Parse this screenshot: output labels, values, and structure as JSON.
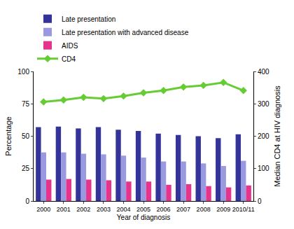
{
  "chart_data": {
    "type": "bar",
    "categories": [
      "2000",
      "2001",
      "2002",
      "2003",
      "2004",
      "2005",
      "2006",
      "2007",
      "2008",
      "2009",
      "2010/11"
    ],
    "x_label": "Year of diagnosis",
    "y_label": "Percentage",
    "y2_label": "Median CD4 at HIV diagnosis",
    "ylim": [
      0,
      100
    ],
    "yticks": [
      0,
      25,
      50,
      75,
      100
    ],
    "y2lim": [
      0,
      400
    ],
    "y2ticks": [
      0,
      100,
      200,
      300,
      400
    ],
    "grid": false,
    "legend": "top-left",
    "series": [
      {
        "name": "Late presentation",
        "type": "bar",
        "color": "#333399",
        "values": [
          57,
          57.5,
          56,
          57,
          55,
          54,
          52,
          51,
          50,
          48.5,
          51.5
        ]
      },
      {
        "name": "Late presentation with advanced disease",
        "type": "bar",
        "color": "#9999e0",
        "values": [
          37.5,
          37.5,
          36.5,
          36,
          35,
          33.5,
          30.5,
          30.5,
          29,
          27,
          31
        ]
      },
      {
        "name": "AIDS",
        "type": "bar",
        "color": "#e6338c",
        "values": [
          16.5,
          17,
          16.5,
          16,
          15,
          15,
          12.5,
          13,
          11.5,
          10.5,
          12
        ]
      },
      {
        "name": "CD4",
        "type": "line",
        "axis": "y2",
        "color": "#66cc33",
        "marker": "diamond",
        "values": [
          306,
          312,
          320,
          316,
          324,
          334,
          341,
          352,
          357,
          366,
          341
        ]
      }
    ]
  }
}
